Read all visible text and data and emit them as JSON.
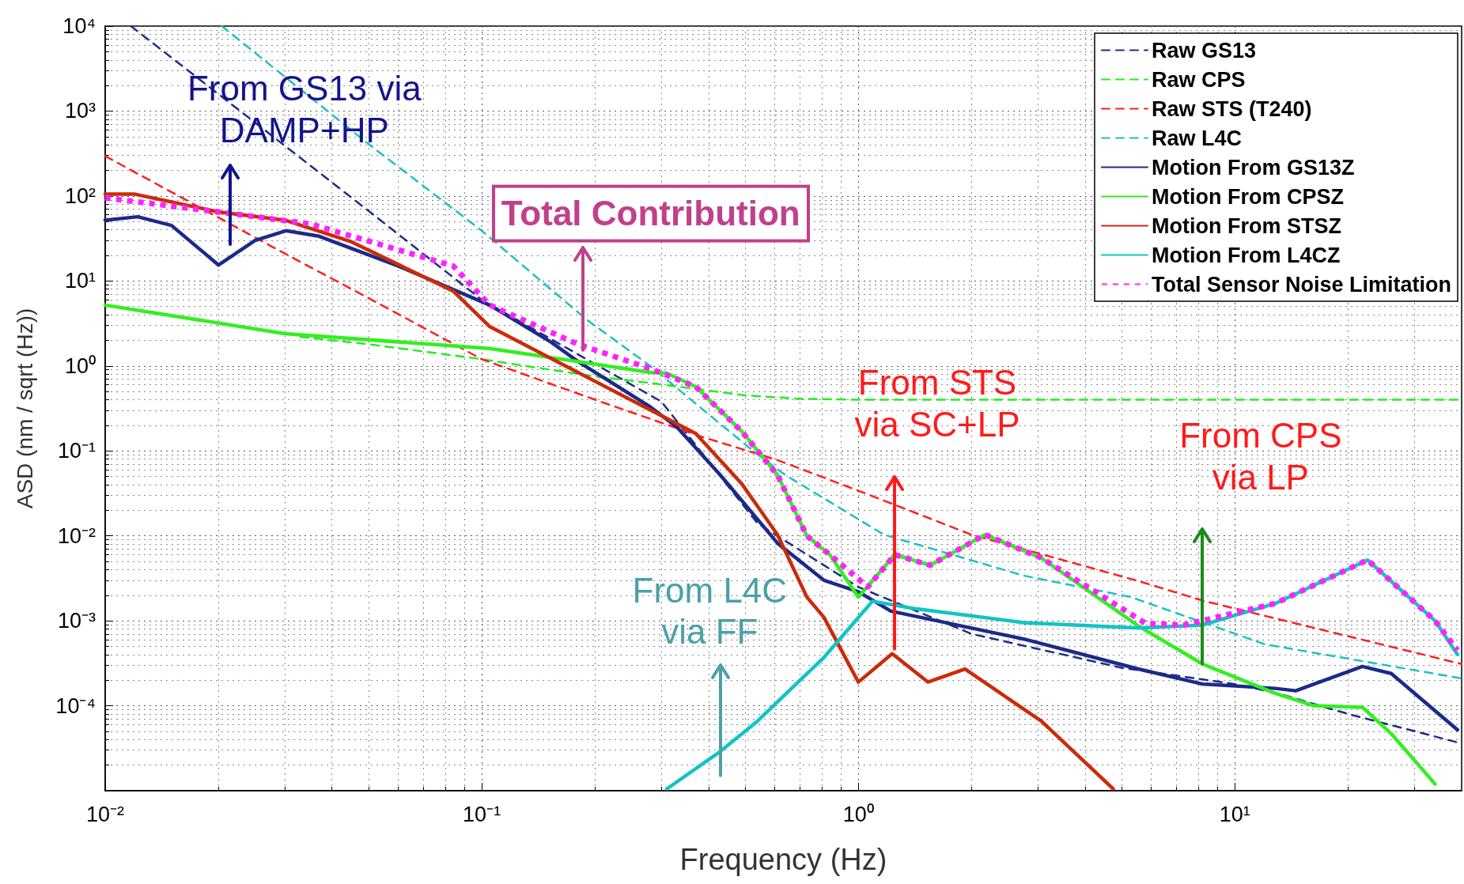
{
  "chart_data": {
    "type": "line",
    "xlabel": "Frequency (Hz)",
    "ylabel": "ASD (nm / sqrt (Hz))",
    "log": "xy",
    "grid": true,
    "legend": "top right",
    "marker": "none",
    "xlim": [
      0.01,
      40
    ],
    "ylim": [
      1e-05,
      10000
    ],
    "xticks": [
      {
        "value": 0.01,
        "label": "10⁻²"
      },
      {
        "value": 0.1,
        "label": "10⁻¹"
      },
      {
        "value": 1,
        "label": "10⁰"
      },
      {
        "value": 10,
        "label": "10¹"
      }
    ],
    "yticks": [
      {
        "value": 0.0001,
        "label": "10⁻⁴"
      },
      {
        "value": 0.001,
        "label": "10⁻³"
      },
      {
        "value": 0.01,
        "label": "10⁻²"
      },
      {
        "value": 0.1,
        "label": "10⁻¹"
      },
      {
        "value": 1,
        "label": "10⁰"
      },
      {
        "value": 10,
        "label": "10¹"
      },
      {
        "value": 100,
        "label": "10²"
      },
      {
        "value": 1000,
        "label": "10³"
      },
      {
        "value": 10000,
        "label": "10⁴"
      }
    ],
    "series": [
      {
        "name": "Raw GS13",
        "color": "#1f2d87",
        "line_style": "dashed",
        "x": [
          0.0117,
          0.02,
          0.03,
          0.05,
          0.1,
          0.2,
          0.3,
          0.54,
          1,
          2,
          5,
          10,
          13,
          20,
          40
        ],
        "values": [
          10000,
          1580,
          390,
          67,
          6,
          1.05,
          0.38,
          0.014,
          0.0025,
          0.0007,
          0.00028,
          0.00018,
          0.00014,
          8e-05,
          3.6e-05
        ]
      },
      {
        "name": "Raw CPS",
        "color": "#22ee22",
        "line_style": "dashed",
        "x": [
          0.033,
          0.05,
          0.1,
          0.2,
          0.28,
          0.5,
          0.7,
          1,
          40
        ],
        "values": [
          2.2,
          1.8,
          1.2,
          0.75,
          0.63,
          0.45,
          0.41,
          0.4,
          0.4
        ]
      },
      {
        "name": "Raw STS (T240)",
        "color": "#ff2020",
        "line_style": "dashed",
        "x": [
          0.01,
          0.03,
          0.05,
          0.1,
          0.2,
          0.385,
          0.61,
          1,
          2,
          5.6,
          8.2,
          40
        ],
        "values": [
          295,
          21,
          6.3,
          1.2,
          0.4,
          0.146,
          0.078,
          0.034,
          0.0103,
          0.0029,
          0.00173,
          0.00031
        ]
      },
      {
        "name": "Raw L4C",
        "color": "#20c0c0",
        "line_style": "dashed",
        "x": [
          0.0204,
          0.05,
          0.1,
          0.19,
          0.28,
          0.4,
          0.53,
          0.64,
          1.17,
          2.75,
          5.3,
          12,
          40
        ],
        "values": [
          10000,
          410,
          39,
          3.5,
          1.0,
          0.27,
          0.097,
          0.052,
          0.0103,
          0.0034,
          0.0019,
          0.00053,
          0.00021
        ]
      },
      {
        "name": "Motion From GS13Z",
        "color": "#1c2a88",
        "line_style": "solid",
        "x": [
          0.01,
          0.0122,
          0.015,
          0.02,
          0.025,
          0.0302,
          0.037,
          0.06,
          0.105,
          0.153,
          0.18,
          0.28,
          0.33,
          0.43,
          0.61,
          0.81,
          1,
          1.22,
          2.75,
          5.56,
          8.2,
          12.8,
          14.5,
          21.8,
          26,
          39
        ],
        "values": [
          52,
          57,
          45,
          15.4,
          30,
          39,
          33.6,
          15,
          5.2,
          1.9,
          1.13,
          0.33,
          0.19,
          0.052,
          0.0082,
          0.003,
          0.0022,
          0.0013,
          0.00061,
          0.00027,
          0.00018,
          0.00016,
          0.00015,
          0.00029,
          0.00024,
          5.2e-05
        ]
      },
      {
        "name": "Motion From CPSZ",
        "color": "#33ee22",
        "line_style": "solid",
        "x": [
          0.01,
          0.03,
          0.105,
          0.28,
          0.31,
          0.37,
          0.49,
          0.61,
          0.73,
          0.84,
          1,
          1.25,
          1.55,
          2.17,
          3.06,
          5.56,
          8.2,
          12.8,
          16.2,
          21.8,
          26,
          34
        ],
        "values": [
          5.2,
          2.4,
          1.6,
          0.84,
          0.82,
          0.57,
          0.17,
          0.052,
          0.01,
          0.006,
          0.0019,
          0.006,
          0.0045,
          0.0103,
          0.0055,
          0.00086,
          0.00031,
          0.00014,
          0.0001,
          9.6e-05,
          4.7e-05,
          1.2e-05
        ]
      },
      {
        "name": "Motion From STSZ",
        "color": "#cc2a0a",
        "line_style": "solid",
        "x": [
          0.01,
          0.012,
          0.02,
          0.03,
          0.045,
          0.084,
          0.105,
          0.18,
          0.31,
          0.37,
          0.49,
          0.61,
          0.73,
          0.81,
          1,
          1.23,
          1.53,
          1.92,
          3.06,
          4.75
        ],
        "values": [
          105,
          105,
          65,
          52,
          29,
          7.6,
          2.9,
          0.84,
          0.24,
          0.16,
          0.041,
          0.0103,
          0.0019,
          0.0011,
          0.00019,
          0.00041,
          0.00019,
          0.00027,
          6.6e-05,
          1.05e-05
        ]
      },
      {
        "name": "Motion From L4CZ",
        "color": "#11c4c4",
        "line_style": "solid",
        "x": [
          0.31,
          0.43,
          0.54,
          0.81,
          1.09,
          1.4,
          2.75,
          5.56,
          8.2,
          12.8,
          22.5,
          34,
          39
        ],
        "values": [
          1.05e-05,
          2.9e-05,
          6.6e-05,
          0.00037,
          0.0017,
          0.0014,
          0.00095,
          0.00082,
          0.00089,
          0.0016,
          0.0052,
          0.001,
          0.0004
        ]
      },
      {
        "name": "Total Sensor Noise Limitation",
        "color": "#ff22ff",
        "line_style": "dotted",
        "x": [
          0.01,
          0.02,
          0.035,
          0.084,
          0.105,
          0.18,
          0.28,
          0.37,
          0.49,
          0.61,
          0.73,
          0.84,
          1.06,
          1.25,
          1.55,
          2.17,
          3.06,
          5.8,
          7.3,
          12.8,
          22.5,
          34,
          39
        ],
        "values": [
          95,
          65,
          47,
          15,
          5.2,
          1.8,
          0.93,
          0.57,
          0.17,
          0.052,
          0.01,
          0.006,
          0.0025,
          0.006,
          0.0045,
          0.0103,
          0.0055,
          0.00093,
          0.00089,
          0.0016,
          0.0052,
          0.001,
          0.00045
        ]
      }
    ],
    "annotations": [
      "From GS13 via DAMP+HP",
      {
        "text": "Total Contribution",
        "x": 0.186,
        "y": 1.54
      },
      {
        "text": "From STS via SC+LP",
        "x": 1.25,
        "y": 0.00047
      },
      {
        "text": "From CPS via LP",
        "x": 8.2,
        "y": 0.00031
      },
      "From L4C via FF"
    ]
  }
}
